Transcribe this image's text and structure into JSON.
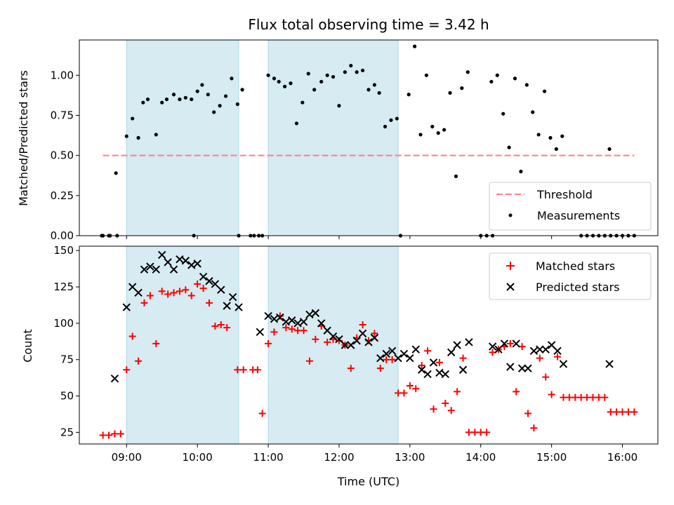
{
  "chart_data": [
    {
      "type": "scatter",
      "title": "Flux total observing time = 3.42 h",
      "ylabel": "Matched/Predicted stars",
      "xlabel": "",
      "ylim": [
        0,
        1.22
      ],
      "yticks": [
        "0.00",
        "0.25",
        "0.50",
        "0.75",
        "1.00"
      ],
      "ytick_values": [
        0,
        0.25,
        0.5,
        0.75,
        1.0
      ],
      "grid": false,
      "legend": {
        "placement": "lower-right",
        "entries": [
          "Threshold",
          "Measurements"
        ]
      },
      "threshold": {
        "name": "Threshold",
        "value": 0.5,
        "x_start": "08:40",
        "x_end": "16:10",
        "color": "#ff8080"
      },
      "series": [
        {
          "name": "Measurements",
          "color": "#000000",
          "x": [
            "08:40",
            "08:46",
            "08:51",
            "09:00",
            "09:05",
            "09:10",
            "09:14",
            "09:18",
            "09:25",
            "09:30",
            "09:34",
            "09:40",
            "09:45",
            "09:50",
            "09:55",
            "10:00",
            "10:04",
            "10:09",
            "10:14",
            "10:19",
            "10:24",
            "10:29",
            "10:34",
            "10:38",
            "11:00",
            "11:05",
            "11:09",
            "11:14",
            "11:19",
            "11:24",
            "11:29",
            "11:34",
            "11:39",
            "11:45",
            "11:50",
            "11:55",
            "12:00",
            "12:05",
            "12:10",
            "12:15",
            "12:20",
            "12:25",
            "12:30",
            "12:34",
            "12:39",
            "12:44",
            "12:49",
            "12:59",
            "13:04",
            "13:09",
            "13:14",
            "13:19",
            "13:24",
            "13:29",
            "13:34",
            "13:39",
            "13:44",
            "13:49",
            "14:09",
            "14:14",
            "14:19",
            "14:24",
            "14:29",
            "14:34",
            "14:39",
            "14:44",
            "14:49",
            "14:54",
            "14:59",
            "15:04",
            "15:09",
            "15:49"
          ],
          "y": [
            0.0,
            0.0,
            0.39,
            0.62,
            0.73,
            0.61,
            0.83,
            0.85,
            0.63,
            0.83,
            0.85,
            0.88,
            0.85,
            0.86,
            0.85,
            0.9,
            0.94,
            0.88,
            0.77,
            0.81,
            0.87,
            0.98,
            0.82,
            0.91,
            1.0,
            0.98,
            0.96,
            0.93,
            0.95,
            0.7,
            0.83,
            1.01,
            0.91,
            0.96,
            1.0,
            0.99,
            0.81,
            1.02,
            1.06,
            1.02,
            1.03,
            0.91,
            0.94,
            0.89,
            0.68,
            0.72,
            0.73,
            0.88,
            1.18,
            0.63,
            1.0,
            0.68,
            0.64,
            0.66,
            0.89,
            0.37,
            0.92,
            1.02,
            0.96,
            1.0,
            0.76,
            0.55,
            0.98,
            0.4,
            0.94,
            0.77,
            0.63,
            0.9,
            0.61,
            0.54,
            0.62,
            0.54
          ]
        },
        {
          "name": "",
          "color": "#000000",
          "x": [
            "08:39",
            "08:45",
            "08:52",
            "09:57",
            "10:35",
            "10:48",
            "10:52",
            "10:55",
            "12:52",
            "14:00",
            "14:05",
            "14:10",
            "15:35",
            "15:40",
            "15:45",
            "15:50",
            "15:55",
            "16:00",
            "16:05",
            "15:30",
            "15:25",
            "16:10",
            "10:45"
          ],
          "y": [
            0,
            0,
            0,
            0,
            0,
            0,
            0,
            0,
            0,
            0,
            0,
            0,
            0,
            0,
            0,
            0,
            0,
            0,
            0,
            0,
            0,
            0,
            0
          ]
        }
      ],
      "shaded_intervals": [
        [
          "09:00",
          "10:35"
        ],
        [
          "11:00",
          "12:50"
        ]
      ]
    },
    {
      "type": "scatter",
      "title": "",
      "xlabel": "Time (UTC)",
      "ylabel": "Count",
      "ylim": [
        17,
        153
      ],
      "yticks": [
        "25",
        "50",
        "75",
        "100",
        "125",
        "150"
      ],
      "ytick_values": [
        25,
        50,
        75,
        100,
        125,
        150
      ],
      "xticks": [
        "09:00",
        "10:00",
        "11:00",
        "12:00",
        "13:00",
        "14:00",
        "15:00",
        "16:00"
      ],
      "xlim": [
        "08:20",
        "16:30"
      ],
      "grid": false,
      "legend": {
        "placement": "top-right",
        "entries": [
          "Matched stars",
          "Predicted stars"
        ]
      },
      "shaded_intervals": [
        [
          "09:00",
          "10:35"
        ],
        [
          "11:00",
          "12:50"
        ]
      ],
      "series": [
        {
          "name": "Matched stars",
          "color": "#ff0000",
          "marker": "plus",
          "x": [
            "08:40",
            "08:45",
            "08:50",
            "08:55",
            "09:00",
            "09:05",
            "09:10",
            "09:15",
            "09:20",
            "09:25",
            "09:30",
            "09:35",
            "09:40",
            "09:45",
            "09:50",
            "09:55",
            "10:00",
            "10:05",
            "10:10",
            "10:15",
            "10:20",
            "10:25",
            "10:34",
            "10:39",
            "10:47",
            "10:51",
            "10:55",
            "11:00",
            "11:05",
            "11:10",
            "11:15",
            "11:20",
            "11:25",
            "11:30",
            "11:35",
            "11:40",
            "11:45",
            "11:50",
            "11:55",
            "12:00",
            "12:05",
            "12:10",
            "12:15",
            "12:20",
            "12:25",
            "12:30",
            "12:35",
            "12:40",
            "12:45",
            "12:50",
            "12:55",
            "13:00",
            "13:05",
            "13:10",
            "13:15",
            "13:20",
            "13:25",
            "13:30",
            "13:35",
            "13:40",
            "13:45",
            "13:50",
            "13:55",
            "14:00",
            "14:05",
            "14:10",
            "14:15",
            "14:20",
            "14:25",
            "14:30",
            "14:35",
            "14:40",
            "14:45",
            "14:50",
            "14:55",
            "15:00",
            "15:05",
            "15:10",
            "15:15",
            "15:20",
            "15:25",
            "15:30",
            "15:35",
            "15:40",
            "15:45",
            "15:50",
            "15:55",
            "16:00",
            "16:05",
            "16:10"
          ],
          "y": [
            23,
            23,
            24,
            24,
            68,
            91,
            74,
            114,
            119,
            86,
            122,
            120,
            121,
            122,
            123,
            119,
            127,
            124,
            114,
            98,
            99,
            97,
            68,
            68,
            68,
            68,
            38,
            86,
            94,
            105,
            97,
            96,
            95,
            95,
            74,
            89,
            98,
            87,
            89,
            88,
            85,
            69,
            90,
            99,
            88,
            93,
            69,
            75,
            75,
            52,
            52,
            57,
            55,
            71,
            81,
            41,
            73,
            45,
            40,
            53,
            76,
            25,
            25,
            25,
            25,
            80,
            82,
            84,
            86,
            53,
            84,
            38,
            28,
            76,
            63,
            51,
            77,
            49,
            49,
            49,
            49,
            49,
            49,
            49,
            49,
            39,
            39,
            39,
            39,
            39
          ]
        },
        {
          "name": "Predicted stars",
          "color": "#000000",
          "marker": "x",
          "x": [
            "08:50",
            "09:00",
            "09:05",
            "09:10",
            "09:15",
            "09:20",
            "09:25",
            "09:30",
            "09:35",
            "09:40",
            "09:45",
            "09:50",
            "09:55",
            "10:00",
            "10:05",
            "10:10",
            "10:15",
            "10:20",
            "10:25",
            "10:30",
            "10:35",
            "10:53",
            "11:00",
            "11:05",
            "11:10",
            "11:15",
            "11:20",
            "11:25",
            "11:30",
            "11:35",
            "11:40",
            "11:45",
            "11:50",
            "11:55",
            "12:00",
            "12:05",
            "12:10",
            "12:15",
            "12:20",
            "12:25",
            "12:30",
            "12:35",
            "12:40",
            "12:45",
            "12:50",
            "12:55",
            "13:00",
            "13:05",
            "13:10",
            "13:15",
            "13:20",
            "13:25",
            "13:30",
            "13:35",
            "13:40",
            "13:45",
            "13:50",
            "14:10",
            "14:15",
            "14:20",
            "14:25",
            "14:30",
            "14:35",
            "14:40",
            "14:45",
            "14:50",
            "14:55",
            "15:00",
            "15:05",
            "15:10",
            "15:49"
          ],
          "y": [
            62,
            111,
            125,
            121,
            137,
            139,
            137,
            147,
            142,
            137,
            144,
            143,
            140,
            141,
            132,
            129,
            127,
            123,
            112,
            118,
            111,
            94,
            105,
            103,
            104,
            101,
            102,
            100,
            101,
            106,
            107,
            100,
            95,
            91,
            89,
            85,
            85,
            88,
            93,
            87,
            90,
            76,
            79,
            81,
            76,
            79,
            76,
            82,
            68,
            65,
            73,
            66,
            65,
            80,
            85,
            68,
            87,
            84,
            82,
            86,
            70,
            86,
            69,
            69,
            81,
            82,
            82,
            85,
            81,
            72,
            72
          ]
        }
      ]
    }
  ]
}
